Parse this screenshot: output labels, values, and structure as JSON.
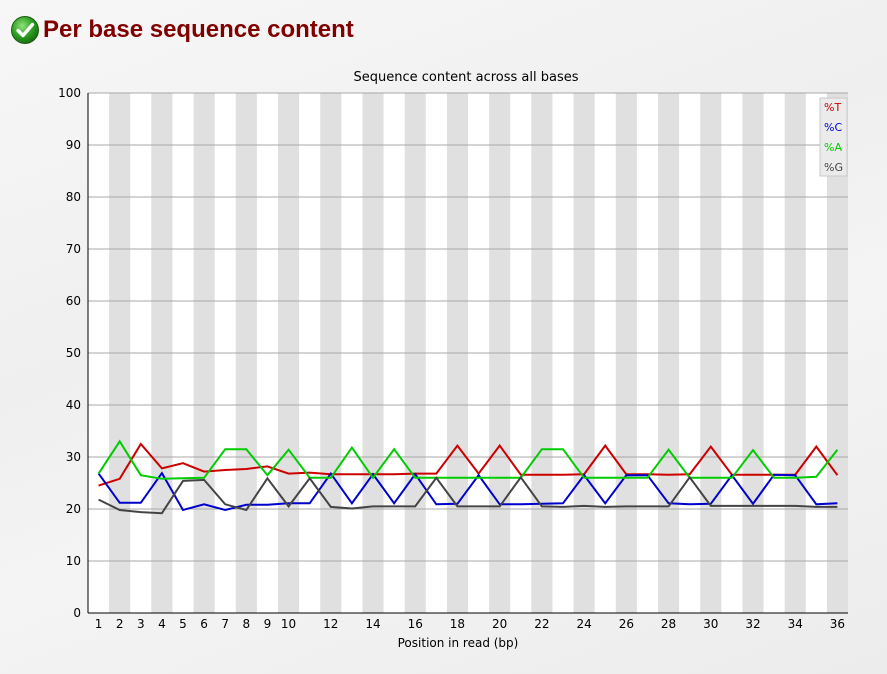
{
  "page": {
    "title": "Per base sequence content",
    "status_icon": "check-icon",
    "status_color": "#2e9e20"
  },
  "chart_data": {
    "type": "line",
    "title": "Sequence content across all bases",
    "xlabel": "Position in read (bp)",
    "ylabel": "",
    "ylim": [
      0,
      100
    ],
    "yticks": [
      0,
      10,
      20,
      30,
      40,
      50,
      60,
      70,
      80,
      90,
      100
    ],
    "categories": [
      "1",
      "2",
      "3",
      "4",
      "5",
      "6",
      "7",
      "8",
      "9",
      "10",
      "11",
      "12",
      "13",
      "14",
      "15",
      "16",
      "17",
      "18",
      "19",
      "20",
      "21",
      "22",
      "23",
      "24",
      "25",
      "26",
      "27",
      "28",
      "29",
      "30",
      "31",
      "32",
      "33",
      "34",
      "35",
      "36"
    ],
    "xtick_labels": [
      "1",
      "2",
      "3",
      "4",
      "5",
      "6",
      "7",
      "8",
      "9",
      "10",
      "",
      "12",
      "",
      "14",
      "",
      "16",
      "",
      "18",
      "",
      "20",
      "",
      "22",
      "",
      "24",
      "",
      "26",
      "",
      "28",
      "",
      "30",
      "",
      "32",
      "",
      "34",
      "",
      "36"
    ],
    "grid": true,
    "legend_position": "top-right",
    "series": [
      {
        "name": "%T",
        "color": "#cc0000",
        "values": [
          24.5,
          25.8,
          32.5,
          27.8,
          28.8,
          27.2,
          27.5,
          27.7,
          28.2,
          26.8,
          27.0,
          26.7,
          26.7,
          26.7,
          26.7,
          26.8,
          26.8,
          32.2,
          26.8,
          32.2,
          26.6,
          26.6,
          26.6,
          26.7,
          32.2,
          26.7,
          26.7,
          26.6,
          26.7,
          32.0,
          26.6,
          26.6,
          26.6,
          26.6,
          32.0,
          26.5
        ]
      },
      {
        "name": "%C",
        "color": "#0000cc",
        "values": [
          26.8,
          21.2,
          21.2,
          26.9,
          19.8,
          20.9,
          19.8,
          20.8,
          20.8,
          21.1,
          21.1,
          26.8,
          21.1,
          26.7,
          21.1,
          26.7,
          20.9,
          21.0,
          26.5,
          20.9,
          20.9,
          21.0,
          21.1,
          26.5,
          21.1,
          26.5,
          26.5,
          21.1,
          20.9,
          21.0,
          26.5,
          21.0,
          26.6,
          26.5,
          20.9,
          21.1
        ]
      },
      {
        "name": "%A",
        "color": "#00cc00",
        "values": [
          26.8,
          33.0,
          26.5,
          25.8,
          25.9,
          26.0,
          31.5,
          31.5,
          26.5,
          31.4,
          26.0,
          26.0,
          31.8,
          26.0,
          31.5,
          26.0,
          26.0,
          26.0,
          26.0,
          26.0,
          26.0,
          31.5,
          31.5,
          26.0,
          26.0,
          26.0,
          26.0,
          31.4,
          26.0,
          26.0,
          26.0,
          31.3,
          26.0,
          26.0,
          26.2,
          31.4
        ]
      },
      {
        "name": "%G",
        "color": "#444444",
        "values": [
          21.8,
          19.8,
          19.4,
          19.2,
          25.4,
          25.6,
          20.9,
          19.8,
          25.9,
          20.5,
          25.9,
          20.4,
          20.1,
          20.5,
          20.5,
          20.5,
          26.0,
          20.5,
          20.5,
          20.5,
          26.1,
          20.5,
          20.4,
          20.6,
          20.4,
          20.5,
          20.5,
          20.5,
          26.1,
          20.6,
          20.6,
          20.6,
          20.6,
          20.6,
          20.4,
          20.4
        ]
      }
    ]
  }
}
